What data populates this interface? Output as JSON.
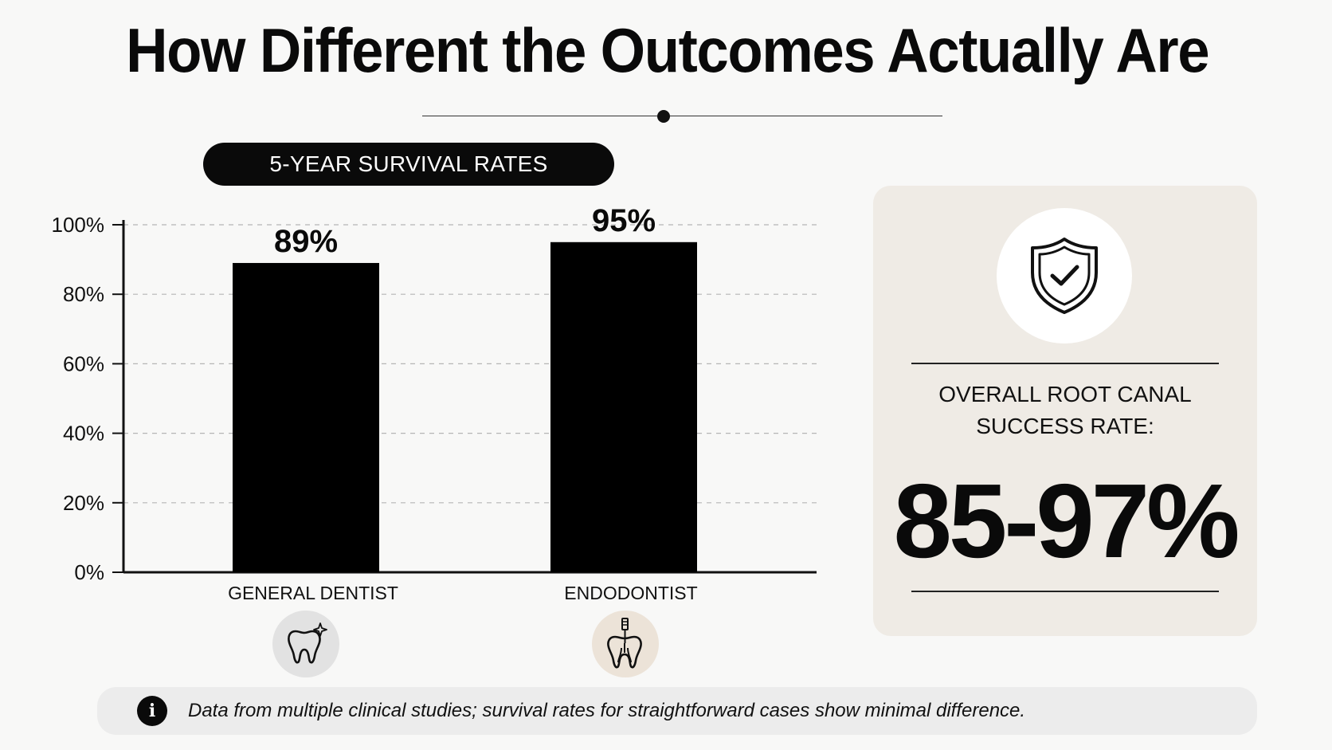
{
  "title": "How Different the Outcomes Actually Are",
  "section_pill": "5-YEAR SURVIVAL RATES",
  "chart_data": {
    "type": "bar",
    "categories": [
      "GENERAL DENTIST",
      "ENDODONTIST"
    ],
    "values": [
      89,
      95
    ],
    "value_labels": [
      "89%",
      "95%"
    ],
    "title": "5-YEAR SURVIVAL RATES",
    "ylim": [
      0,
      100
    ],
    "yticks": [
      0,
      20,
      40,
      60,
      80,
      100
    ],
    "ytick_labels": [
      "0%",
      "20%",
      "40%",
      "60%",
      "80%",
      "100%"
    ],
    "grid": "dashed horizontal",
    "bar_color": "#000000",
    "category_icons": [
      "tooth-sparkle-icon",
      "root-canal-tooth-icon"
    ]
  },
  "summary_card": {
    "icon": "shield-check-icon",
    "label_line1": "OVERALL ROOT CANAL",
    "label_line2": "SUCCESS RATE:",
    "value": "85-97%"
  },
  "footnote": {
    "icon": "info-icon",
    "icon_glyph": "i",
    "text": "Data from multiple clinical studies; survival rates for straightforward cases show minimal difference."
  },
  "colors": {
    "background": "#f8f8f7",
    "ink": "#0a0a0a",
    "card": "#efebe5",
    "footnote_bg": "#ececec",
    "icon_circle_general": "#e2e2e2",
    "icon_circle_endo": "#ece3d8"
  }
}
